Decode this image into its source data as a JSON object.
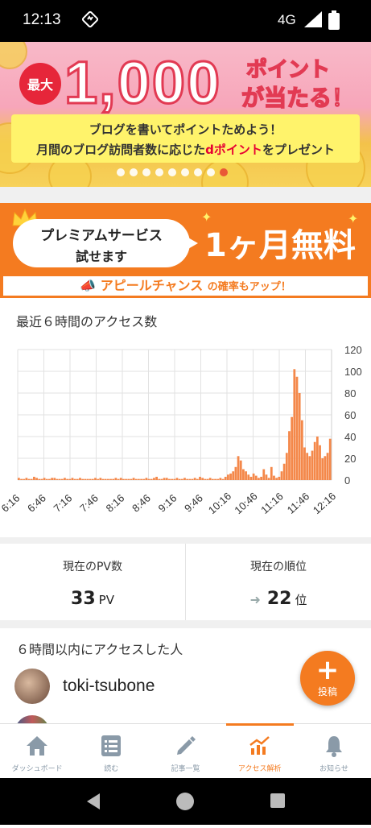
{
  "status_bar": {
    "time": "12:13",
    "network": "4G"
  },
  "promo_banner": {
    "badge": "最大",
    "amount": "1,000",
    "line_top": "ポイント",
    "line_bottom": "が当たる！",
    "text1": "ブログを書いてポイントためよう！",
    "text2_prefix": "月間のブログ訪問者数に応じた",
    "text2_highlight": "dポイント",
    "text2_suffix": "をプレゼント",
    "slide_count": 9,
    "active_slide": 9
  },
  "premium_banner": {
    "bubble_line1": "プレミアムサービス",
    "bubble_line2": "試せます",
    "free_text": "1ヶ月無料",
    "appeal_main": "アピールチャンス",
    "appeal_small": "の確率もアップ！"
  },
  "access": {
    "title": "最近６時間のアクセス数"
  },
  "chart_data": {
    "type": "bar",
    "y_ticks": [
      "120",
      "100",
      "80",
      "60",
      "40",
      "20",
      "0"
    ],
    "ylim": [
      0,
      120
    ],
    "x_ticks": [
      "6:16",
      "6:46",
      "7:16",
      "7:46",
      "8:16",
      "8:46",
      "9:16",
      "9:46",
      "10:16",
      "10:46",
      "11:16",
      "11:46",
      "12:16"
    ],
    "grid": true,
    "color": "#f4884a",
    "values": [
      2,
      1,
      1,
      2,
      1,
      1,
      3,
      2,
      1,
      1,
      2,
      1,
      1,
      2,
      2,
      1,
      1,
      1,
      2,
      1,
      1,
      2,
      1,
      1,
      2,
      1,
      1,
      1,
      1,
      1,
      2,
      1,
      2,
      1,
      1,
      1,
      1,
      1,
      2,
      1,
      2,
      1,
      1,
      1,
      1,
      2,
      1,
      1,
      1,
      1,
      2,
      1,
      1,
      2,
      3,
      1,
      1,
      2,
      2,
      1,
      1,
      1,
      2,
      1,
      1,
      2,
      1,
      1,
      1,
      2,
      1,
      3,
      2,
      1,
      1,
      2,
      1,
      1,
      1,
      2,
      1,
      3,
      5,
      6,
      8,
      12,
      22,
      18,
      10,
      8,
      5,
      3,
      6,
      4,
      2,
      3,
      10,
      5,
      2,
      12,
      4,
      2,
      3,
      8,
      15,
      25,
      45,
      58,
      102,
      95,
      80,
      55,
      30,
      25,
      22,
      27,
      35,
      40,
      32,
      20,
      22,
      25,
      38
    ]
  },
  "stats": {
    "pv_label": "現在のPV数",
    "pv_value": "33",
    "pv_unit": "PV",
    "rank_label": "現在の順位",
    "rank_value": "22",
    "rank_unit": "位"
  },
  "visitors": {
    "title": "６時間以内にアクセスした人",
    "items": [
      {
        "name": "toki-tsubone"
      }
    ]
  },
  "fab": {
    "label": "投稿"
  },
  "nav": [
    {
      "label": "ダッシュボード",
      "icon": "home-icon"
    },
    {
      "label": "読む",
      "icon": "list-icon"
    },
    {
      "label": "記事一覧",
      "icon": "pencil-icon"
    },
    {
      "label": "アクセス解析",
      "icon": "analytics-icon"
    },
    {
      "label": "お知らせ",
      "icon": "bell-icon"
    }
  ]
}
